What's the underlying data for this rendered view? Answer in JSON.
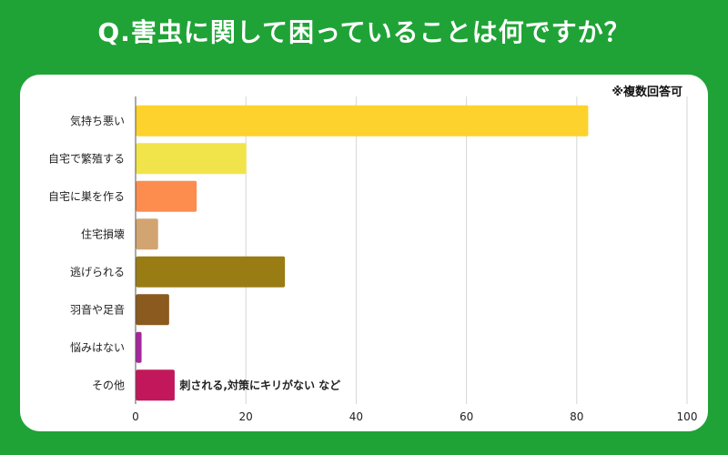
{
  "title": "Q.害虫に関して困っていることは何ですか？",
  "note": "※複数回答可",
  "chart_data": {
    "type": "bar",
    "orientation": "horizontal",
    "title": "Q.害虫に関して困っていることは何ですか？",
    "categories": [
      "気持ち悪い",
      "自宅で繁殖する",
      "自宅に巣を作る",
      "住宅損壊",
      "逃げられる",
      "羽音や足音",
      "悩みはない",
      "その他"
    ],
    "values": [
      82,
      20,
      11,
      4,
      27,
      6,
      1,
      7
    ],
    "colors": [
      "#fdd22c",
      "#f1e44a",
      "#fc8d4f",
      "#d2a472",
      "#9a7c14",
      "#8b5a1e",
      "#a6269d",
      "#c2185b"
    ],
    "xlim": [
      0,
      100
    ],
    "xticks": [
      0,
      20,
      40,
      60,
      80,
      100
    ],
    "grid": true,
    "annotation": {
      "category": "その他",
      "text": "刺される,対策にキリがない など"
    }
  }
}
